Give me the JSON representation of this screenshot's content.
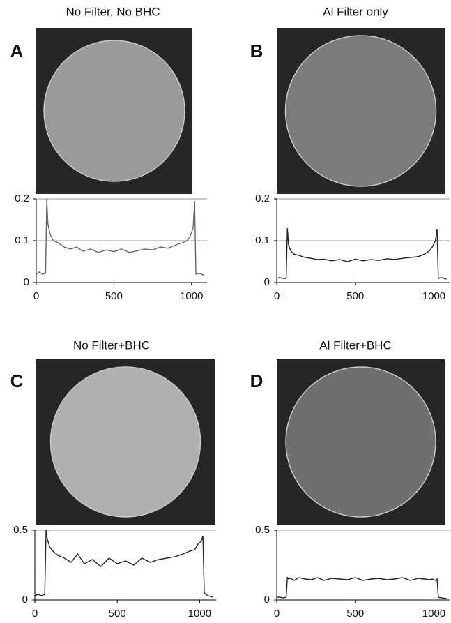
{
  "chart_data": [
    {
      "type": "line",
      "label": "A",
      "title": "No Filter, No BHC",
      "x": [
        0,
        20,
        40,
        60,
        68,
        75,
        90,
        110,
        140,
        180,
        220,
        260,
        300,
        350,
        400,
        450,
        500,
        550,
        600,
        650,
        700,
        750,
        800,
        850,
        900,
        940,
        970,
        990,
        1010,
        1020,
        1028,
        1050,
        1080
      ],
      "series": [
        {
          "color": "#666666",
          "values": [
            0.02,
            0.025,
            0.02,
            0.022,
            0.2,
            0.14,
            0.115,
            0.1,
            0.095,
            0.085,
            0.08,
            0.085,
            0.075,
            0.08,
            0.072,
            0.078,
            0.074,
            0.08,
            0.072,
            0.076,
            0.08,
            0.078,
            0.085,
            0.082,
            0.09,
            0.095,
            0.1,
            0.11,
            0.13,
            0.195,
            0.02,
            0.022,
            0.018
          ]
        }
      ],
      "xlim": [
        0,
        1100
      ],
      "ylim": [
        0,
        0.2
      ],
      "xticks": [
        0,
        500,
        1000
      ],
      "yticks": [
        0,
        0.1,
        0.2
      ],
      "grid": true
    },
    {
      "type": "line",
      "label": "B",
      "title": "Al Filter only",
      "x": [
        0,
        20,
        40,
        60,
        68,
        75,
        90,
        110,
        140,
        180,
        220,
        260,
        300,
        350,
        400,
        450,
        500,
        550,
        600,
        650,
        700,
        750,
        800,
        850,
        900,
        940,
        970,
        990,
        1010,
        1020,
        1028,
        1050,
        1080
      ],
      "series": [
        {
          "color": "#222222",
          "values": [
            0.01,
            0.012,
            0.01,
            0.01,
            0.13,
            0.09,
            0.075,
            0.068,
            0.065,
            0.06,
            0.058,
            0.055,
            0.056,
            0.052,
            0.055,
            0.05,
            0.056,
            0.052,
            0.055,
            0.053,
            0.057,
            0.055,
            0.058,
            0.06,
            0.062,
            0.068,
            0.075,
            0.085,
            0.1,
            0.128,
            0.01,
            0.012,
            0.008
          ]
        }
      ],
      "xlim": [
        0,
        1100
      ],
      "ylim": [
        0,
        0.2
      ],
      "xticks": [
        0,
        500,
        1000
      ],
      "yticks": [
        0,
        0.1,
        0.2
      ],
      "grid": true
    },
    {
      "type": "line",
      "label": "C",
      "title": "No Filter+BHC",
      "x": [
        0,
        20,
        40,
        60,
        68,
        75,
        90,
        110,
        140,
        180,
        220,
        260,
        300,
        350,
        400,
        450,
        500,
        550,
        600,
        650,
        700,
        750,
        800,
        850,
        900,
        940,
        970,
        990,
        1010,
        1020,
        1028,
        1050,
        1080
      ],
      "series": [
        {
          "color": "#222222",
          "values": [
            0.03,
            0.04,
            0.03,
            0.04,
            0.5,
            0.44,
            0.38,
            0.35,
            0.32,
            0.3,
            0.27,
            0.33,
            0.26,
            0.29,
            0.24,
            0.3,
            0.26,
            0.28,
            0.25,
            0.3,
            0.27,
            0.29,
            0.3,
            0.31,
            0.33,
            0.35,
            0.36,
            0.4,
            0.42,
            0.46,
            0.05,
            0.03,
            0.02
          ]
        }
      ],
      "xlim": [
        0,
        1100
      ],
      "ylim": [
        0,
        0.5
      ],
      "xticks": [
        0,
        500,
        1000
      ],
      "yticks": [
        0,
        0.5
      ],
      "grid": true
    },
    {
      "type": "line",
      "label": "D",
      "title": "Al Filter+BHC",
      "x": [
        0,
        20,
        40,
        60,
        68,
        75,
        90,
        110,
        140,
        180,
        220,
        260,
        300,
        350,
        400,
        450,
        500,
        550,
        600,
        650,
        700,
        750,
        800,
        850,
        900,
        940,
        970,
        990,
        1010,
        1020,
        1028,
        1050,
        1080
      ],
      "series": [
        {
          "color": "#222222",
          "values": [
            0.02,
            0.02,
            0.015,
            0.02,
            0.16,
            0.15,
            0.155,
            0.14,
            0.16,
            0.15,
            0.145,
            0.16,
            0.14,
            0.155,
            0.15,
            0.145,
            0.16,
            0.14,
            0.15,
            0.155,
            0.145,
            0.15,
            0.16,
            0.14,
            0.155,
            0.15,
            0.145,
            0.15,
            0.14,
            0.15,
            0.02,
            0.015,
            0.01
          ]
        }
      ],
      "xlim": [
        0,
        1100
      ],
      "ylim": [
        0,
        0.5
      ],
      "xticks": [
        0,
        500,
        1000
      ],
      "yticks": [
        0,
        0.5
      ],
      "grid": true
    }
  ]
}
